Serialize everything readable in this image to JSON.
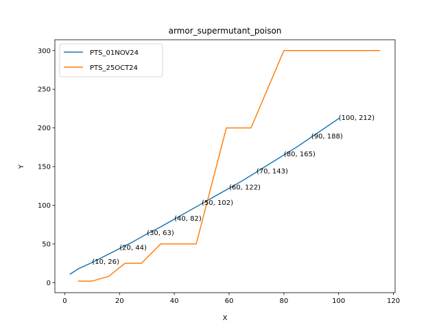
{
  "chart_data": {
    "type": "line",
    "title": "armor_supermutant_poison",
    "xlabel": "X",
    "ylabel": "Y",
    "xlim": [
      -3.6,
      120.6
    ],
    "ylim": [
      -13,
      314
    ],
    "xticks": [
      0,
      20,
      40,
      60,
      80,
      100,
      120
    ],
    "yticks": [
      0,
      50,
      100,
      150,
      200,
      250,
      300
    ],
    "grid": false,
    "legend_position": "top-left",
    "series": [
      {
        "name": "PTS_01NOV24",
        "color": "#1f77b4",
        "x": [
          2,
          5,
          10,
          15,
          20,
          25,
          30,
          35,
          40,
          45,
          50,
          55,
          60,
          65,
          70,
          75,
          80,
          85,
          90,
          95,
          100
        ],
        "y": [
          11,
          18,
          26,
          35,
          44,
          53,
          63,
          72,
          82,
          92,
          102,
          112,
          122,
          132,
          143,
          154,
          165,
          176,
          188,
          200,
          212
        ]
      },
      {
        "name": "PTS_25OCT24",
        "color": "#ff7f0e",
        "x": [
          5,
          10,
          16,
          22,
          28,
          35,
          48,
          59,
          68,
          80,
          115
        ],
        "y": [
          2,
          2,
          8,
          25,
          25,
          50,
          50,
          200,
          200,
          300,
          300
        ]
      }
    ],
    "annotations": [
      {
        "x": 10,
        "y": 26,
        "text": "(10, 26)"
      },
      {
        "x": 20,
        "y": 44,
        "text": "(20, 44)"
      },
      {
        "x": 30,
        "y": 63,
        "text": "(30, 63)"
      },
      {
        "x": 40,
        "y": 82,
        "text": "(40, 82)"
      },
      {
        "x": 50,
        "y": 102,
        "text": "(50, 102)"
      },
      {
        "x": 60,
        "y": 122,
        "text": "(60, 122)"
      },
      {
        "x": 70,
        "y": 143,
        "text": "(70, 143)"
      },
      {
        "x": 80,
        "y": 165,
        "text": "(80, 165)"
      },
      {
        "x": 90,
        "y": 188,
        "text": "(90, 188)"
      },
      {
        "x": 100,
        "y": 212,
        "text": "(100, 212)"
      }
    ]
  }
}
